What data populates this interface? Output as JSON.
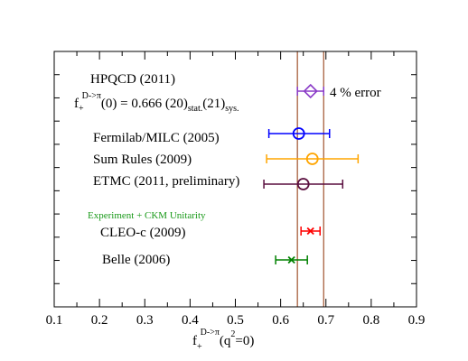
{
  "chart_data": {
    "type": "forest",
    "xlim": [
      0.1,
      0.9
    ],
    "xticks": [
      0.1,
      0.2,
      0.3,
      0.4,
      0.5,
      0.6,
      0.7,
      0.8,
      0.9
    ],
    "xticklabels": [
      "0.1",
      "0.2",
      "0.3",
      "0.4",
      "0.5",
      "0.6",
      "0.7",
      "0.8",
      "0.9"
    ],
    "xlabel": {
      "main": "f",
      "sub": "+",
      "sup": "D->π",
      "tail_a": "(q",
      "tail_sup": "2",
      "tail_b": "=0)"
    },
    "band": {
      "low": 0.637,
      "high": 0.695,
      "color": "#a0522d"
    },
    "headline": {
      "label": "HPQCD (2011)",
      "color": "#6b0f4e",
      "formula": {
        "main": "f",
        "sub": "+",
        "sup": "D->π",
        "mid": "(0) = 0.666 (20)",
        "sub1": "stat.",
        "mid2": "(21)",
        "sub2": "sys."
      },
      "annotation": "4 % error"
    },
    "points": [
      {
        "label": "HPQCD (2011)",
        "value": 0.666,
        "err_low": 0.637,
        "err_high": 0.695,
        "marker": "diamond",
        "color": "#8a3ac7"
      },
      {
        "label": "Fermilab/MILC (2005)",
        "value": 0.64,
        "err_low": 0.574,
        "err_high": 0.708,
        "marker": "circle",
        "color": "#0000ff"
      },
      {
        "label": "Sum Rules (2009)",
        "value": 0.67,
        "err_low": 0.569,
        "err_high": 0.771,
        "marker": "circle",
        "color": "#ffa500"
      },
      {
        "label": "ETMC (2011, preliminary)",
        "value": 0.65,
        "err_low": 0.563,
        "err_high": 0.737,
        "marker": "circle",
        "color": "#5a0f3f"
      },
      {
        "label": "CLEO-c (2009)",
        "value": 0.666,
        "err_low": 0.645,
        "err_high": 0.687,
        "marker": "x",
        "color": "#ff0000"
      },
      {
        "label": "Belle (2006)",
        "value": 0.624,
        "err_low": 0.589,
        "err_high": 0.659,
        "marker": "x",
        "color": "#008000"
      }
    ],
    "section_label": {
      "text": "Experiment + CKM Unitarity",
      "color": "#1a9a1a"
    },
    "grid": false
  }
}
